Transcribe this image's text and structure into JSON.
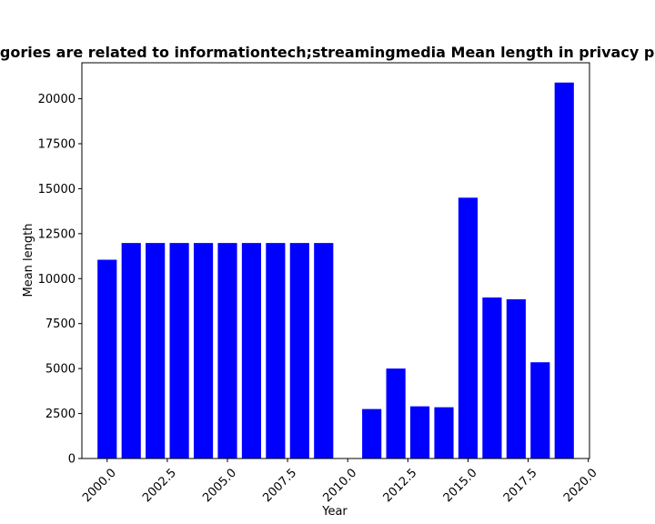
{
  "chart_data": {
    "type": "bar",
    "title": "Categories are related to informationtech;streamingmedia Mean length in privacy policy",
    "xlabel": "Year",
    "ylabel": "Mean length",
    "x": [
      2000,
      2001,
      2002,
      2003,
      2004,
      2005,
      2006,
      2007,
      2008,
      2009,
      2011,
      2012,
      2013,
      2014,
      2015,
      2016,
      2017,
      2018,
      2019
    ],
    "values": [
      11050,
      11980,
      11980,
      11980,
      11980,
      11980,
      11980,
      11980,
      11980,
      11980,
      2750,
      5000,
      2900,
      2850,
      14500,
      8950,
      8850,
      5350,
      20900
    ],
    "xlim": [
      1998.95,
      2020.05
    ],
    "ylim": [
      0,
      22000
    ],
    "xticks": [
      "2000.0",
      "2002.5",
      "2005.0",
      "2007.5",
      "2010.0",
      "2012.5",
      "2015.0",
      "2017.5",
      "2020.0"
    ],
    "yticks": [
      "0",
      "2500",
      "5000",
      "7500",
      "10000",
      "12500",
      "15000",
      "17500",
      "20000"
    ],
    "bar_color": "#0000ff",
    "grid": false,
    "legend": "none"
  }
}
